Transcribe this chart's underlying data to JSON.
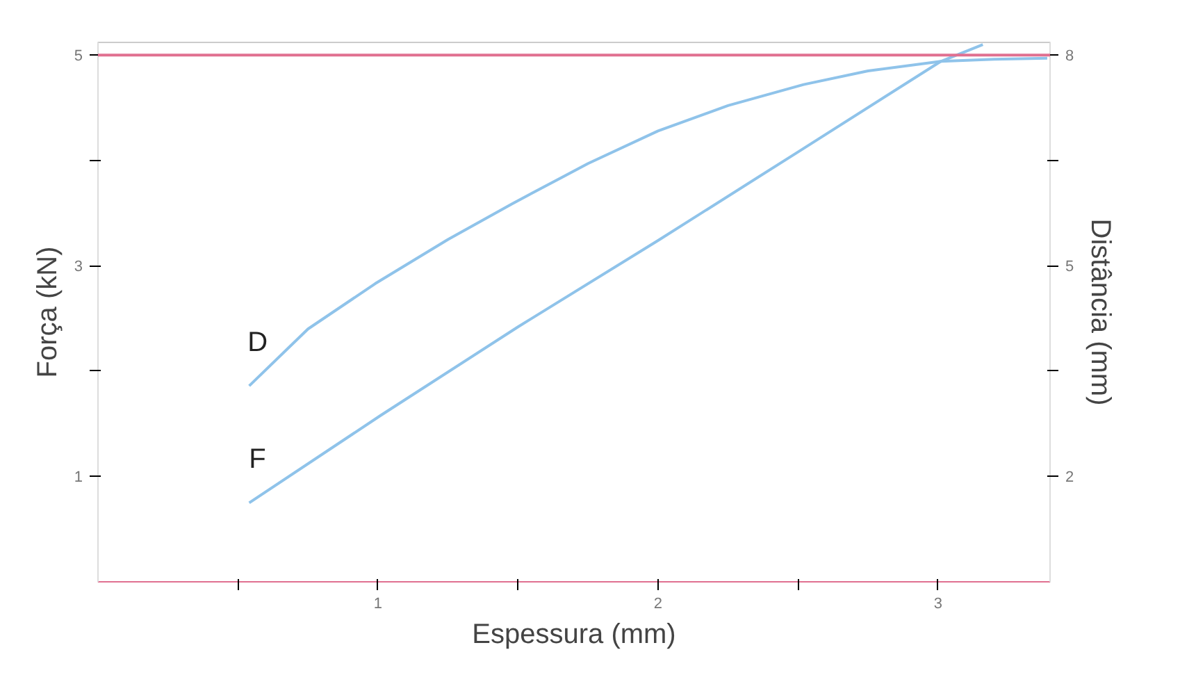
{
  "chart_data": {
    "type": "line",
    "xlabel": "Espessura (mm)",
    "ylabel": "Força (kN)",
    "y2label": "Distância (mm)",
    "xlim": [
      0,
      3.4
    ],
    "xticks": [
      {
        "value": 0.5,
        "label": null
      },
      1,
      {
        "value": 1.5,
        "label": null
      },
      2,
      {
        "value": 2.5,
        "label": null
      },
      3
    ],
    "ylim": [
      0,
      5.12
    ],
    "yticks": [
      1,
      {
        "value": 2,
        "label": null
      },
      3,
      {
        "value": 4,
        "label": null
      },
      5
    ],
    "y2lim": [
      0.5,
      8.18
    ],
    "y2ticks": [
      2,
      {
        "value": 3.5,
        "label": null
      },
      5,
      {
        "value": 6.5,
        "label": null
      },
      8
    ],
    "grid": false,
    "line_style": "solid",
    "marker": "none",
    "ref_lines": [
      {
        "axis": "y",
        "value": 5,
        "color": "#e07090"
      }
    ],
    "series": [
      {
        "name": "D",
        "color": "#8fc3ea",
        "x": [
          0.54,
          0.75,
          0.99,
          1.25,
          1.48,
          1.75,
          2.0,
          2.25,
          2.52,
          2.75,
          3.01,
          3.2,
          3.39
        ],
        "values": [
          1.86,
          2.4,
          2.83,
          3.25,
          3.59,
          3.97,
          4.28,
          4.52,
          4.72,
          4.85,
          4.94,
          4.96,
          4.97
        ]
      },
      {
        "name": "F",
        "color": "#8fc3ea",
        "x": [
          0.54,
          1.01,
          1.5,
          2.0,
          2.5,
          3.01,
          3.16
        ],
        "values": [
          0.75,
          1.58,
          2.42,
          3.24,
          4.08,
          4.94,
          5.1
        ]
      }
    ]
  }
}
